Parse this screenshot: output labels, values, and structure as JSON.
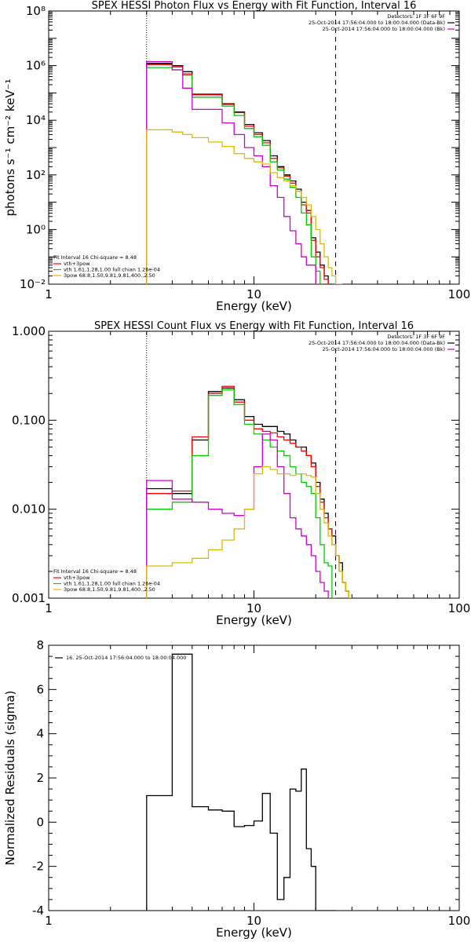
{
  "chart_data": [
    {
      "type": "line",
      "title": "SPEX HESSI Photon Flux vs Energy with Fit Function, Interval 16",
      "xlabel": "Energy (keV)",
      "ylabel": "photons s⁻¹ cm⁻² keV⁻¹",
      "xscale": "log",
      "yscale": "log",
      "xlim": [
        1,
        100
      ],
      "ylim": [
        0.01,
        100000000
      ],
      "xtick_labels": [
        "1",
        "10",
        "100"
      ],
      "ytick_labels": [
        "10⁻²",
        "10⁰",
        "10²",
        "10⁴",
        "10⁶",
        "10⁸"
      ],
      "vlines": [
        {
          "x": 3,
          "style": "dotted"
        },
        {
          "x": 25,
          "style": "dashed"
        }
      ],
      "bin_edges": [
        3,
        3.5,
        4,
        4.5,
        5,
        6,
        7,
        8,
        9,
        10,
        11,
        12,
        13,
        14,
        15,
        16,
        17,
        18,
        19,
        20,
        21,
        22,
        23,
        24,
        25,
        26,
        27,
        28,
        29,
        30
      ],
      "series": [
        {
          "color": "#000000",
          "values": [
            1200000,
            1200000,
            1000000,
            600000,
            90000,
            90000,
            40000,
            20000,
            7000,
            3500,
            1800,
            500,
            200,
            100,
            60,
            30,
            10,
            5,
            0.5,
            0.15,
            0.05,
            0.02,
            0.01,
            null,
            null,
            null,
            null,
            null,
            null
          ]
        },
        {
          "color": "#ff0000",
          "values": [
            1100000,
            1100000,
            900000,
            500000,
            85000,
            85000,
            38000,
            19000,
            6000,
            3000,
            1500,
            400,
            180,
            90,
            50,
            25,
            8,
            4,
            0.4,
            0.1,
            0.04,
            0.015,
            0.01,
            null,
            null,
            null,
            null,
            null,
            null
          ]
        },
        {
          "color": "#00cc00",
          "values": [
            850000,
            850000,
            700000,
            450000,
            70000,
            70000,
            33000,
            15000,
            5000,
            2500,
            1200,
            300,
            150,
            70,
            35,
            15,
            4,
            1.5,
            0.1,
            0.03,
            0.01,
            null,
            null,
            null,
            null,
            null,
            null,
            null,
            null
          ]
        },
        {
          "color": "#cc00cc",
          "values": [
            1400000,
            1400000,
            700000,
            150000,
            25000,
            25000,
            8000,
            3000,
            1000,
            500,
            200,
            40,
            15,
            3,
            0.9,
            0.3,
            0.1,
            0.05,
            0.05,
            0.01,
            0.01,
            null,
            null,
            null,
            null,
            null,
            null,
            null,
            null
          ]
        },
        {
          "color": "#ddbb00",
          "values": [
            4500,
            4500,
            3700,
            3000,
            2300,
            1600,
            1100,
            600,
            400,
            300,
            250,
            120,
            80,
            60,
            40,
            25,
            15,
            8,
            3,
            1,
            0.3,
            0.1,
            0.04,
            0.02,
            0.01,
            0.01,
            null,
            null,
            null
          ]
        }
      ],
      "legend": {
        "header": [
          "Detectors: 1F 3F 6F 9F",
          "25-Oct-2014 17:56:04.000 to 18:00:04.000 (Data-Bk)",
          "25-Oct-2014 17:56:04.000 to 18:00:04.000 (Bk)"
        ],
        "header_colors": [
          "#000000",
          "#000000",
          "#cc00cc"
        ],
        "fit_title": "Fit Interval 16   Chi-square = 8.48",
        "fit_items": [
          {
            "label": "vth+3pow",
            "color": "#ff0000"
          },
          {
            "label": "vth 1.61,1.28,1.00  full chian 1.26e-04",
            "color": "#00cc00"
          },
          {
            "label": "3pow 68.8,1.50,9.81,9.81,400.,2.50",
            "color": "#ddbb00"
          }
        ]
      }
    },
    {
      "type": "line",
      "title": "SPEX HESSI Count Flux vs Energy with Fit Function, Interval 16",
      "xlabel": "Energy (keV)",
      "ylabel": "",
      "xscale": "log",
      "yscale": "log",
      "xlim": [
        1,
        100
      ],
      "ylim": [
        0.001,
        1
      ],
      "xtick_labels": [
        "1",
        "10",
        "100"
      ],
      "ytick_labels": [
        "0.001",
        "0.010",
        "0.100",
        "1.000"
      ],
      "vlines": [
        {
          "x": 3,
          "style": "dotted"
        },
        {
          "x": 25,
          "style": "dashed"
        }
      ],
      "bin_edges": [
        3,
        3.5,
        4,
        4.5,
        5,
        6,
        7,
        8,
        9,
        10,
        11,
        12,
        13,
        14,
        15,
        16,
        17,
        18,
        19,
        20,
        21,
        22,
        23,
        24,
        25,
        26,
        27,
        28,
        29,
        30
      ],
      "series": [
        {
          "color": "#000000",
          "values": [
            0.017,
            0.017,
            0.015,
            0.015,
            0.06,
            0.21,
            0.23,
            0.17,
            0.11,
            0.09,
            0.085,
            0.085,
            0.075,
            0.07,
            0.06,
            0.05,
            0.05,
            0.04,
            0.033,
            0.02,
            0.013,
            0.009,
            0.006,
            0.005,
            0.003,
            0.0025,
            0.0015,
            0.0012,
            0.001
          ]
        },
        {
          "color": "#ff0000",
          "values": [
            0.015,
            0.015,
            0.016,
            0.016,
            0.065,
            0.2,
            0.24,
            0.16,
            0.1,
            0.08,
            0.075,
            0.072,
            0.065,
            0.06,
            0.055,
            0.05,
            0.045,
            0.04,
            0.03,
            0.018,
            0.012,
            0.008,
            0.006,
            0.004,
            0.003,
            0.002,
            0.0015,
            0.0012,
            0.001
          ]
        },
        {
          "color": "#00cc00",
          "values": [
            0.01,
            0.01,
            0.012,
            0.012,
            0.04,
            0.19,
            0.22,
            0.15,
            0.09,
            0.07,
            0.06,
            0.05,
            0.045,
            0.04,
            0.03,
            0.025,
            0.02,
            0.018,
            0.015,
            0.008,
            0.004,
            0.0025,
            0.0023,
            0.001,
            null,
            null,
            null,
            null,
            null
          ]
        },
        {
          "color": "#cc00cc",
          "values": [
            0.021,
            0.021,
            0.013,
            0.013,
            0.012,
            0.01,
            0.009,
            0.0085,
            0.01,
            0.03,
            0.07,
            0.06,
            0.03,
            0.015,
            0.008,
            0.006,
            0.005,
            0.004,
            0.003,
            0.002,
            0.0015,
            0.0012,
            0.001,
            null,
            null,
            null,
            null,
            null,
            null
          ]
        },
        {
          "color": "#ddbb00",
          "values": [
            0.0023,
            0.0023,
            0.0025,
            0.0025,
            0.0028,
            0.0035,
            0.0045,
            0.006,
            0.01,
            0.025,
            0.03,
            0.028,
            0.025,
            0.025,
            0.024,
            0.025,
            0.025,
            0.024,
            0.023,
            0.015,
            0.01,
            0.007,
            0.005,
            0.004,
            0.003,
            0.002,
            0.0015,
            0.0012,
            0.001
          ]
        }
      ],
      "legend": {
        "header": [
          "Detectors: 1F 3F 6F 9F",
          "25-Oct-2014 17:56:04.000 to 18:00:04.000 (Data-Bk)",
          "25-Oct-2014 17:56:04.000 to 18:00:04.000 (Bk)"
        ],
        "header_colors": [
          "#000000",
          "#000000",
          "#cc00cc"
        ],
        "fit_title": "Fit Interval 16   Chi-square = 8.48",
        "fit_items": [
          {
            "label": "vth+3pow",
            "color": "#ff0000"
          },
          {
            "label": "vth 1.61,1.28,1.00  full chian 1.26e-04",
            "color": "#00cc00"
          },
          {
            "label": "3pow 68.8,1.50,9.81,9.81,400.,2.50",
            "color": "#ddbb00"
          }
        ]
      }
    },
    {
      "type": "line",
      "title": "",
      "xlabel": "Energy (keV)",
      "ylabel": "Normalized Residuals (sigma)",
      "xscale": "log",
      "yscale": "linear",
      "xlim": [
        1,
        100
      ],
      "ylim": [
        -4,
        8
      ],
      "xtick_labels": [
        "1",
        "10",
        "100"
      ],
      "ytick_labels": [
        "-4",
        "-2",
        "0",
        "2",
        "4",
        "6",
        "8"
      ],
      "bin_edges": [
        3,
        3.5,
        4,
        4.5,
        5,
        6,
        7,
        8,
        9,
        10,
        11,
        12,
        13,
        14,
        15,
        16,
        17,
        18,
        19,
        20,
        21,
        22,
        23,
        24,
        25
      ],
      "series": [
        {
          "color": "#000000",
          "values": [
            1.2,
            1.2,
            7.6,
            7.6,
            0.7,
            0.55,
            0.5,
            -0.2,
            -0.15,
            0.05,
            1.3,
            -0.5,
            -3.5,
            -2.5,
            1.5,
            1.4,
            2.4,
            -1.2,
            -2.0,
            -4.0,
            -4.0,
            -4.0,
            -4.0,
            -4.0
          ]
        }
      ],
      "legend": {
        "items": [
          {
            "label": "16. 25-Oct-2014 17:56:04.000 to 18:00:04.000",
            "color": "#000000"
          }
        ]
      }
    }
  ]
}
